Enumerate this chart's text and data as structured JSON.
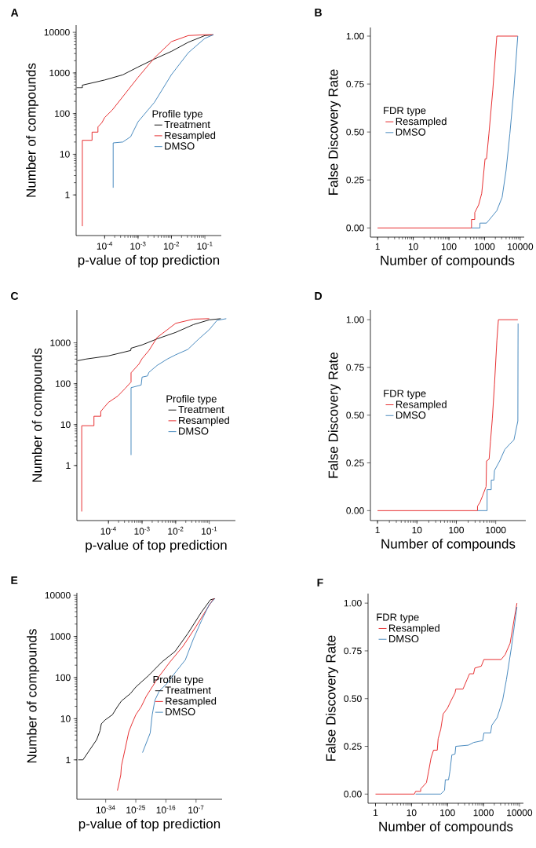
{
  "chart_data": [
    {
      "type": "line",
      "title": "A",
      "xlabel": "p-value of top prediction",
      "ylabel": "Number of compounds",
      "legend_title": "Profile type",
      "legend": "right",
      "log": "xy",
      "xlim": [
        1.4e-05,
        0.31
      ],
      "ylim": [
        0.1,
        15000
      ],
      "xticks": [
        {
          "value": 0.0001,
          "label": "10$^{-4}$"
        },
        {
          "value": 0.001,
          "label": "10$^{-3}$"
        },
        {
          "value": 0.01,
          "label": "10$^{-2}$"
        },
        {
          "value": 0.1,
          "label": "10$^{-1}$"
        }
      ],
      "yticks": [
        1,
        10,
        100,
        1000,
        10000
      ],
      "series": [
        {
          "name": "Treatment",
          "color": "#000000",
          "x": [
            1.45e-05,
            2.15e-05,
            2.15e-05,
            0.0001,
            0.00035,
            0.001,
            0.0031,
            0.01,
            0.032,
            0.1,
            0.18
          ],
          "values": [
            430,
            430,
            500,
            670,
            900,
            1400,
            2200,
            3400,
            5700,
            8300,
            8700
          ]
        },
        {
          "name": "Resampled",
          "color": "#e41a1c",
          "x": [
            2.15e-05,
            2.15e-05,
            4.2e-05,
            4.2e-05,
            6.3e-05,
            6.3e-05,
            8.3e-05,
            0.0001,
            0.00017,
            0.001,
            0.0031,
            0.01,
            0.032,
            0.1,
            0.18
          ],
          "values": [
            0.17,
            22,
            22,
            35,
            35,
            47,
            60,
            80,
            123,
            780,
            2350,
            5900,
            8300,
            8700,
            8700
          ]
        },
        {
          "name": "DMSO",
          "color": "#377eb8",
          "x": [
            0.00018,
            0.00018,
            0.00035,
            0.0006,
            0.001,
            0.0031,
            0.01,
            0.032,
            0.1,
            0.18
          ],
          "values": [
            1.5,
            19,
            20,
            27,
            63,
            190,
            910,
            3150,
            7100,
            8700
          ]
        }
      ]
    },
    {
      "type": "line",
      "title": "B",
      "xlabel": "Number of compounds",
      "ylabel": "False Discovery Rate",
      "legend_title": "FDR type",
      "legend": "left",
      "log": "x",
      "xlim": [
        0.63,
        12900
      ],
      "ylim": [
        -0.048,
        1.045
      ],
      "xticks": [
        1,
        10,
        100,
        1000,
        10000
      ],
      "yticks": [
        {
          "value": 0,
          "label": "0.00"
        },
        0.25,
        {
          "value": 0.5,
          "label": "0.50"
        },
        0.75,
        {
          "value": 1,
          "label": "1.00"
        }
      ],
      "series": [
        {
          "name": "Resampled",
          "color": "#e41a1c",
          "x": [
            1,
            430,
            430,
            530,
            530,
            680,
            830,
            1030,
            1130,
            1320,
            1700,
            2200,
            8500
          ],
          "values": [
            0,
            0,
            0.044,
            0.044,
            0.08,
            0.12,
            0.18,
            0.36,
            0.36,
            0.49,
            0.72,
            1.0,
            1.0
          ]
        },
        {
          "name": "DMSO",
          "color": "#377eb8",
          "x": [
            430,
            740,
            740,
            1130,
            1320,
            2200,
            3100,
            4000,
            5100,
            6600,
            8500
          ],
          "values": [
            0,
            0,
            0.025,
            0.025,
            0.04,
            0.09,
            0.16,
            0.3,
            0.49,
            0.72,
            1.0
          ]
        }
      ]
    },
    {
      "type": "line",
      "title": "C",
      "xlabel": "p-value of top prediction",
      "ylabel": "Number of compounds",
      "legend_title": "Profile type",
      "legend": "right",
      "log": "xy",
      "xlim": [
        1.15e-05,
        0.6
      ],
      "ylim": [
        0.045,
        6300
      ],
      "xticks": [
        {
          "value": 0.0001,
          "label": "10$^{-4}$"
        },
        {
          "value": 0.001,
          "label": "10$^{-3}$"
        },
        {
          "value": 0.01,
          "label": "10$^{-2}$"
        },
        {
          "value": 0.1,
          "label": "10$^{-1}$"
        }
      ],
      "yticks": [
        1,
        10,
        100,
        1000
      ],
      "series": [
        {
          "name": "Treatment",
          "color": "#000000",
          "x": [
            1.2e-05,
            2.1e-05,
            0.0001,
            0.00046,
            0.00047,
            0.001,
            0.0028,
            0.01,
            0.034,
            0.1,
            0.22
          ],
          "values": [
            365,
            400,
            480,
            650,
            740,
            890,
            1250,
            1800,
            2800,
            3650,
            3900
          ]
        },
        {
          "name": "Resampled",
          "color": "#e41a1c",
          "x": [
            1.6e-05,
            1.6e-05,
            3.7e-05,
            3.7e-05,
            5.9e-05,
            5.9e-05,
            7.6e-05,
            0.0001,
            0.00019,
            0.00032,
            0.00047,
            0.00047,
            0.0008,
            0.001,
            0.0016,
            0.0028,
            0.01,
            0.034,
            0.1
          ],
          "values": [
            0.075,
            9.4,
            9.4,
            16,
            16,
            21,
            27,
            35,
            50,
            78,
            110,
            185,
            300,
            410,
            650,
            1350,
            3000,
            3800,
            3900
          ]
        },
        {
          "name": "DMSO",
          "color": "#377eb8",
          "x": [
            0.00047,
            0.00047,
            0.00094,
            0.001,
            0.00145,
            0.0016,
            0.0028,
            0.0056,
            0.01,
            0.023,
            0.049,
            0.1,
            0.17,
            0.32
          ],
          "values": [
            1.8,
            80,
            93,
            145,
            155,
            190,
            280,
            400,
            510,
            690,
            1250,
            2100,
            3550,
            3900
          ]
        }
      ]
    },
    {
      "type": "line",
      "title": "D",
      "xlabel": "Number of compounds",
      "ylabel": "False Discovery Rate",
      "legend_title": "FDR type",
      "legend": "left",
      "log": "x",
      "xlim": [
        0.66,
        5800
      ],
      "ylim": [
        -0.052,
        1.05
      ],
      "xticks": [
        1,
        10,
        100,
        1000
      ],
      "yticks": [
        {
          "value": 0,
          "label": "0.00"
        },
        0.25,
        {
          "value": 0.5,
          "label": "0.50"
        },
        0.75,
        {
          "value": 1,
          "label": "1.00"
        }
      ],
      "series": [
        {
          "name": "Resampled",
          "color": "#e41a1c",
          "x": [
            1,
            345,
            345,
            400,
            465,
            570,
            585,
            680,
            735,
            820,
            930,
            1070,
            1170,
            3650
          ],
          "values": [
            0,
            0,
            0.023,
            0.044,
            0.078,
            0.126,
            0.26,
            0.27,
            0.36,
            0.48,
            0.66,
            0.89,
            1.0,
            1.0
          ]
        },
        {
          "name": "DMSO",
          "color": "#377eb8",
          "x": [
            345,
            605,
            605,
            770,
            770,
            900,
            930,
            1260,
            1700,
            2300,
            2900,
            3650,
            3680,
            3700
          ],
          "values": [
            0,
            0,
            0.11,
            0.11,
            0.16,
            0.16,
            0.21,
            0.26,
            0.32,
            0.35,
            0.37,
            0.47,
            0.84,
            0.98
          ]
        }
      ]
    },
    {
      "type": "line",
      "title": "E",
      "xlabel": "p-value of top prediction",
      "ylabel": "Number of compounds",
      "legend_title": "Profile type",
      "legend": "right",
      "log": "xy",
      "xlim": [
        2.5e-43,
        6
      ],
      "ylim": [
        0.11,
        11500
      ],
      "xticks": [
        {
          "value": 1e-34,
          "label": "10$^{-34}$"
        },
        {
          "value": 1e-25,
          "label": "10$^{-25}$"
        },
        {
          "value": 1e-16,
          "label": "10$^{-16}$"
        },
        {
          "value": 1e-07,
          "label": "10$^{-7}$"
        }
      ],
      "yticks": [
        1,
        10,
        100,
        1000,
        10000
      ],
      "series": [
        {
          "name": "Treatment",
          "color": "#000000",
          "x": [
            6.3e-43,
            1.6e-41,
            2e-37,
            2e-36,
            5e-36,
            6.3e-35,
            1e-32,
            3.2e-31,
            5e-30,
            2.5e-27,
            1e-25,
            8e-22,
            6.3e-18,
            5e-14,
            4e-10,
            4e-06,
            0.002,
            0.04
          ],
          "values": [
            1,
            1,
            3.1,
            5.1,
            7.5,
            9.3,
            12.5,
            19.6,
            27,
            41,
            59,
            114,
            240,
            430,
            1200,
            3900,
            7800,
            8300
          ]
        },
        {
          "name": "Resampled",
          "color": "#e41a1c",
          "x": [
            3.2e-31,
            3.2e-30,
            5e-30,
            8e-29,
            8e-28,
            6.3e-27,
            1e-25,
            4e-24,
            1.3e-22,
            1.3e-20,
            4e-19,
            1.6e-15,
            1.3e-11,
            1e-07,
            0.00013,
            0.013,
            0.04
          ],
          "values": [
            0.18,
            0.43,
            0.71,
            2.0,
            4.8,
            7.4,
            12.5,
            19.5,
            35,
            63,
            98,
            240,
            580,
            1750,
            4500,
            8000,
            8300
          ]
        },
        {
          "name": "DMSO",
          "color": "#377eb8",
          "x": [
            1e-23,
            2e-21,
            8e-21,
            5e-20,
            1e-18,
            2.5e-16,
            5e-14,
            6.3e-11,
            1.6e-08,
            4e-06,
            0.0008,
            0.04
          ],
          "values": [
            1.5,
            4.5,
            12.5,
            28,
            47,
            73,
            130,
            270,
            870,
            2400,
            5900,
            8300
          ]
        }
      ]
    },
    {
      "type": "line",
      "title": "F",
      "xlabel": "Number of compounds",
      "ylabel": "False Discovery Rate",
      "legend_title": "FDR type",
      "legend": "top left",
      "log": "x",
      "xlim": [
        0.62,
        12900
      ],
      "ylim": [
        -0.048,
        1.05
      ],
      "xticks": [
        1,
        10,
        100,
        1000,
        10000
      ],
      "yticks": [
        {
          "value": 0,
          "label": "0.00"
        },
        0.25,
        {
          "value": 0.5,
          "label": "0.50"
        },
        0.75,
        {
          "value": 1,
          "label": "1.00"
        }
      ],
      "series": [
        {
          "name": "Resampled",
          "color": "#e41a1c",
          "x": [
            1,
            12,
            13,
            18,
            18,
            26,
            30,
            35,
            41,
            52,
            55,
            65,
            76,
            100,
            126,
            162,
            170,
            270,
            350,
            410,
            530,
            575,
            870,
            1030,
            3100,
            4000,
            5500,
            8500
          ],
          "values": [
            0,
            0,
            0.014,
            0.014,
            0.027,
            0.06,
            0.12,
            0.19,
            0.23,
            0.23,
            0.29,
            0.34,
            0.42,
            0.45,
            0.49,
            0.53,
            0.55,
            0.55,
            0.6,
            0.63,
            0.63,
            0.66,
            0.67,
            0.705,
            0.705,
            0.73,
            0.79,
            1.0
          ]
        },
        {
          "name": "DMSO",
          "color": "#377eb8",
          "x": [
            13,
            65,
            83,
            87,
            107,
            117,
            132,
            162,
            170,
            380,
            530,
            950,
            1030,
            1580,
            1700,
            2400,
            3400,
            4350,
            6000,
            8500
          ],
          "values": [
            0,
            0,
            0.02,
            0.075,
            0.075,
            0.12,
            0.205,
            0.21,
            0.25,
            0.256,
            0.27,
            0.28,
            0.32,
            0.32,
            0.36,
            0.4,
            0.49,
            0.6,
            0.77,
            0.98
          ]
        }
      ]
    }
  ]
}
